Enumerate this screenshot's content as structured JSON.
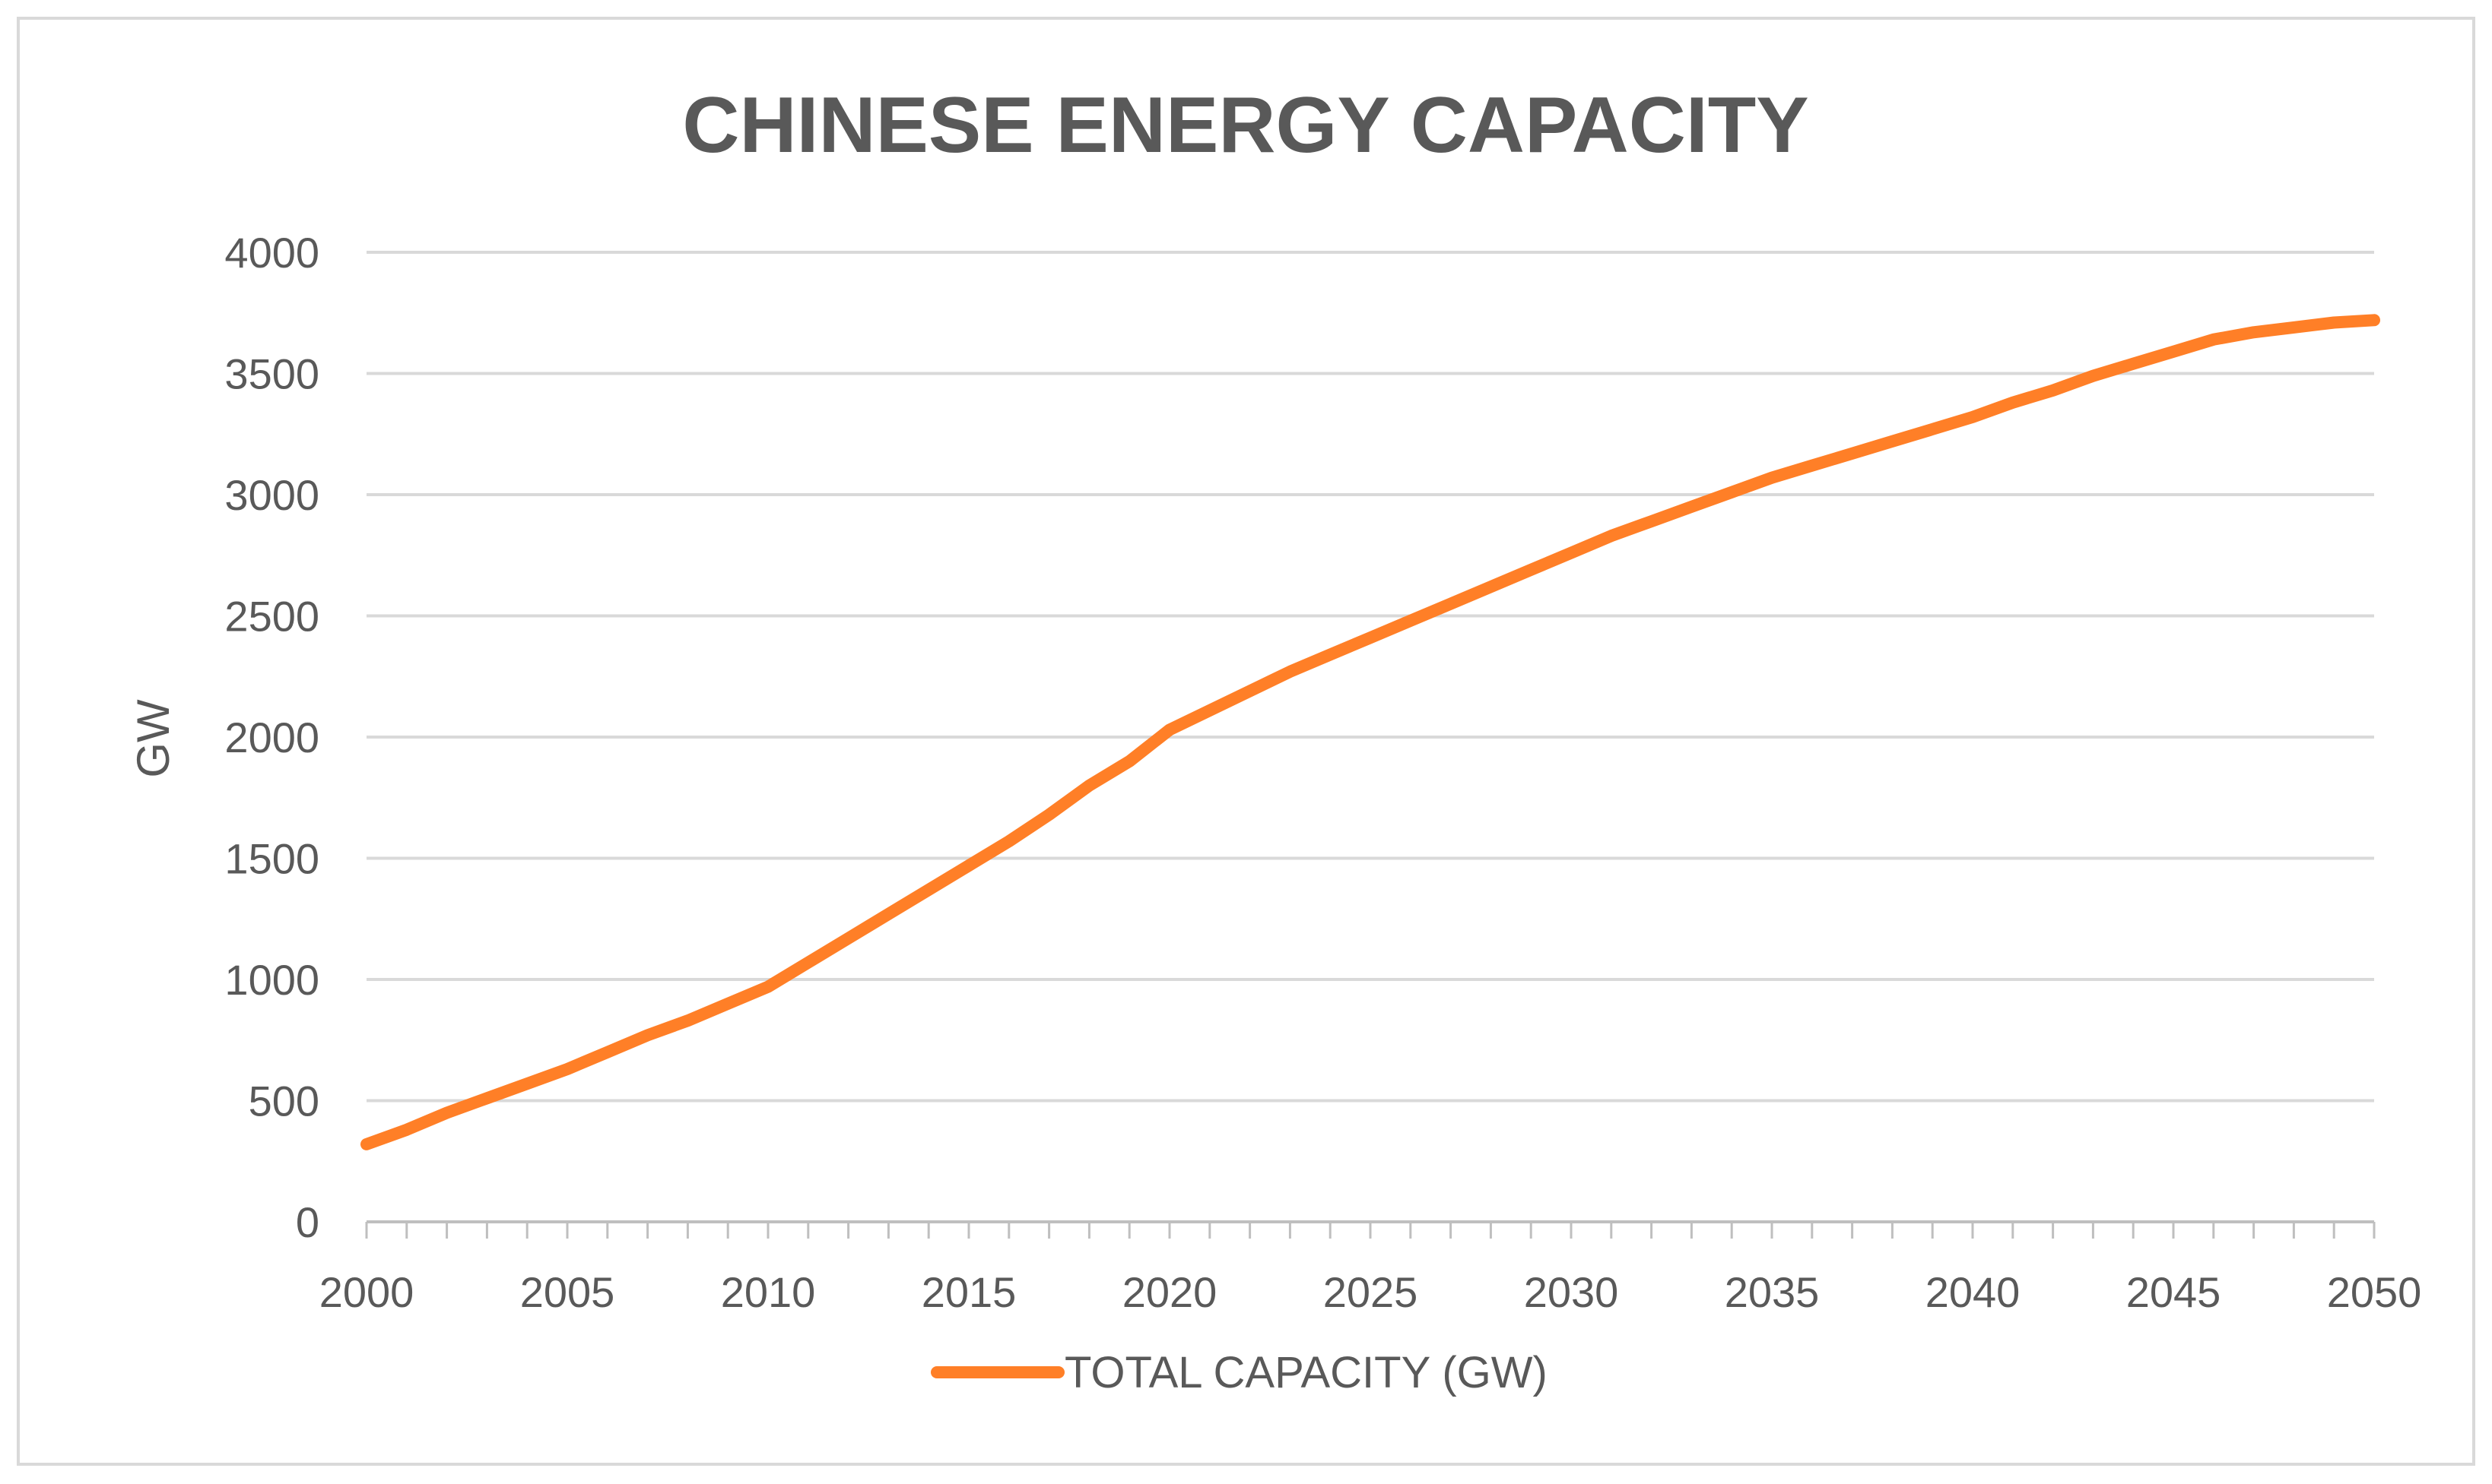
{
  "chart_data": {
    "type": "line",
    "title": "CHINESE ENERGY CAPACITY",
    "xlabel": "",
    "ylabel": "GW",
    "xlim": [
      2000,
      2050
    ],
    "ylim": [
      0,
      4000
    ],
    "x_ticks": [
      2000,
      2005,
      2010,
      2015,
      2020,
      2025,
      2030,
      2035,
      2040,
      2045,
      2050
    ],
    "y_ticks": [
      0,
      500,
      1000,
      1500,
      2000,
      2500,
      3000,
      3500,
      4000
    ],
    "grid": true,
    "legend_position": "bottom",
    "series": [
      {
        "name": "TOTAL CAPACITY (GW)",
        "color": "#ff7f27",
        "x": [
          2000,
          2001,
          2002,
          2003,
          2004,
          2005,
          2006,
          2007,
          2008,
          2009,
          2010,
          2011,
          2012,
          2013,
          2014,
          2015,
          2016,
          2017,
          2018,
          2019,
          2020,
          2021,
          2022,
          2023,
          2024,
          2025,
          2026,
          2027,
          2028,
          2029,
          2030,
          2031,
          2032,
          2033,
          2034,
          2035,
          2036,
          2037,
          2038,
          2039,
          2040,
          2041,
          2042,
          2043,
          2044,
          2045,
          2046,
          2047,
          2048,
          2049,
          2050
        ],
        "values": [
          320,
          380,
          450,
          510,
          570,
          630,
          700,
          770,
          830,
          900,
          970,
          1070,
          1170,
          1270,
          1370,
          1470,
          1570,
          1680,
          1800,
          1900,
          2030,
          2110,
          2190,
          2270,
          2340,
          2410,
          2480,
          2550,
          2620,
          2690,
          2760,
          2830,
          2890,
          2950,
          3010,
          3070,
          3120,
          3170,
          3220,
          3270,
          3320,
          3380,
          3430,
          3490,
          3540,
          3590,
          3640,
          3670,
          3690,
          3710,
          3720
        ]
      }
    ]
  }
}
